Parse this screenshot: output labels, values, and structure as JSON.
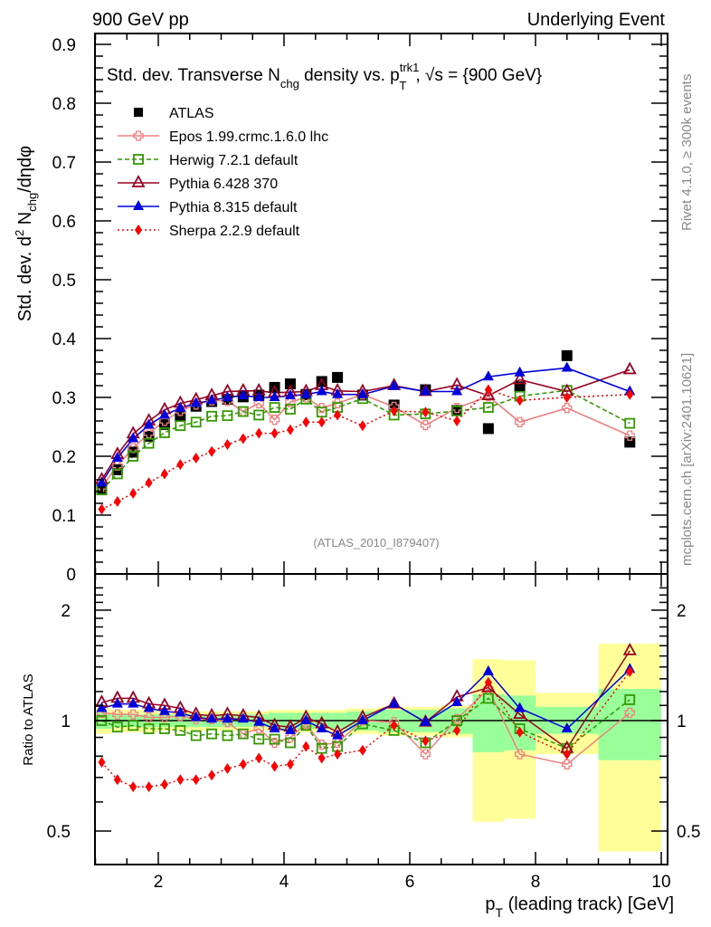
{
  "header": {
    "left": "900 GeV pp",
    "right": "Underlying Event"
  },
  "side_labels": {
    "rivet": "Rivet 4.1.0, ≥ 300k events",
    "mcplots": "mcplots.cern.ch [arXiv:2401.10621]"
  },
  "analysis_id": "(ATLAS_2010_I879407)",
  "chart_data": [
    {
      "type": "line",
      "title": "Std. dev. Transverse N_chg density vs. p_T^trk1, √s = {900 GeV}",
      "title_parts": {
        "a": "Std. dev. Transverse N",
        "sub1": "chg",
        "b": " density vs. p",
        "sup": "trk1",
        "sub2": "T",
        "c": ", √s = {900 GeV}"
      },
      "xlabel": "p_T (leading track) [GeV]",
      "xlabel_parts": {
        "p": "p",
        "sub": "T",
        "rest": " (leading track) [GeV]"
      },
      "ylabel": "Std. dev. d² N_chg/dηdφ",
      "ylabel_parts": {
        "a": "Std. dev. d",
        "sup": "2",
        "b": " N",
        "sub": "chg",
        "c": "/dηdφ"
      },
      "xlim": [
        0.75,
        10.1
      ],
      "ylim": [
        0,
        0.92
      ],
      "xticks": [
        "2",
        "4",
        "6",
        "8",
        "10"
      ],
      "xtick_values": [
        2,
        4,
        6,
        8,
        10
      ],
      "yticks": [
        "0",
        "0.1",
        "0.2",
        "0.3",
        "0.4",
        "0.5",
        "0.6",
        "0.7",
        "0.8",
        "0.9"
      ],
      "ytick_values": [
        0,
        0.1,
        0.2,
        0.3,
        0.4,
        0.5,
        0.6,
        0.7,
        0.8,
        0.9
      ],
      "legend_position": "top-left",
      "x": [
        1.1,
        1.35,
        1.6,
        1.85,
        2.1,
        2.35,
        2.6,
        2.85,
        3.1,
        3.35,
        3.6,
        3.85,
        4.1,
        4.35,
        4.6,
        4.85,
        5.25,
        5.75,
        6.25,
        6.75,
        7.25,
        7.75,
        8.5,
        9.5
      ],
      "series": [
        {
          "name": "ATLAS",
          "color": "#000000",
          "marker": "square",
          "line": "none",
          "values": [
            0.143,
            0.177,
            0.207,
            0.234,
            0.254,
            0.268,
            0.285,
            0.293,
            0.297,
            0.301,
            0.304,
            0.317,
            0.323,
            0.305,
            0.327,
            0.334,
            0.304,
            0.287,
            0.313,
            0.278,
            0.247,
            0.318,
            0.371,
            0.224
          ]
        },
        {
          "name": "Epos 1.99.crmc.1.6.0 lhc",
          "color": "#f08080",
          "marker": "open-cross",
          "line": "solid",
          "values": [
            0.148,
            0.184,
            0.214,
            0.239,
            0.26,
            0.277,
            0.288,
            0.295,
            0.294,
            0.276,
            0.29,
            0.262,
            0.292,
            0.3,
            0.282,
            0.29,
            0.305,
            0.284,
            0.253,
            0.282,
            0.302,
            0.258,
            0.282,
            0.235
          ]
        },
        {
          "name": "Herwig 7.2.1 default",
          "color": "#339900",
          "marker": "open-square",
          "line": "dashed",
          "values": [
            0.143,
            0.17,
            0.2,
            0.222,
            0.24,
            0.252,
            0.258,
            0.268,
            0.269,
            0.276,
            0.27,
            0.283,
            0.28,
            0.297,
            0.275,
            0.283,
            0.298,
            0.27,
            0.272,
            0.277,
            0.283,
            0.302,
            0.312,
            0.256
          ]
        },
        {
          "name": "Pythia 6.428 370",
          "color": "#990022",
          "marker": "open-triangle",
          "line": "solid",
          "values": [
            0.16,
            0.203,
            0.238,
            0.26,
            0.279,
            0.29,
            0.296,
            0.303,
            0.31,
            0.311,
            0.311,
            0.308,
            0.309,
            0.31,
            0.32,
            0.311,
            0.31,
            0.32,
            0.31,
            0.321,
            0.303,
            0.33,
            0.31,
            0.347
          ]
        },
        {
          "name": "Pythia 8.315 default",
          "color": "#0000dd",
          "marker": "triangle",
          "line": "solid",
          "values": [
            0.155,
            0.197,
            0.23,
            0.253,
            0.27,
            0.282,
            0.29,
            0.295,
            0.3,
            0.303,
            0.3,
            0.3,
            0.303,
            0.305,
            0.31,
            0.305,
            0.305,
            0.319,
            0.31,
            0.31,
            0.335,
            0.342,
            0.35,
            0.31
          ]
        },
        {
          "name": "Sherpa 2.2.9 default",
          "color": "#ff0000",
          "marker": "diamond",
          "line": "dotted",
          "values": [
            0.11,
            0.123,
            0.137,
            0.155,
            0.17,
            0.186,
            0.197,
            0.208,
            0.22,
            0.23,
            0.239,
            0.239,
            0.245,
            0.258,
            0.258,
            0.27,
            0.252,
            0.277,
            0.275,
            0.26,
            0.313,
            0.295,
            0.3,
            0.305
          ]
        }
      ]
    },
    {
      "type": "line",
      "title": "",
      "xlabel": "p_T (leading track) [GeV]",
      "ylabel": "Ratio to ATLAS",
      "yscale": "log",
      "ylim": [
        0.42,
        2.35
      ],
      "yticks": [
        "0.5",
        "1",
        "2"
      ],
      "ytick_values": [
        0.5,
        1,
        2
      ],
      "x_edges": [
        1.0,
        1.25,
        1.5,
        1.75,
        2.0,
        2.25,
        2.5,
        2.75,
        3.0,
        3.25,
        3.5,
        3.75,
        4.0,
        4.25,
        4.5,
        4.75,
        5.0,
        5.5,
        6.0,
        6.5,
        7.0,
        7.5,
        8.0,
        9.0,
        10.0
      ],
      "band_stat": {
        "name": "stat uncertainty",
        "color": "#99ff99",
        "low": [
          0.95,
          0.96,
          0.96,
          0.96,
          0.96,
          0.96,
          0.96,
          0.96,
          0.96,
          0.96,
          0.96,
          0.95,
          0.95,
          0.95,
          0.95,
          0.95,
          0.94,
          0.93,
          0.93,
          0.92,
          0.82,
          0.83,
          0.92,
          0.78
        ],
        "high": [
          1.05,
          1.04,
          1.04,
          1.04,
          1.04,
          1.04,
          1.04,
          1.04,
          1.04,
          1.04,
          1.04,
          1.05,
          1.05,
          1.05,
          1.05,
          1.05,
          1.06,
          1.07,
          1.07,
          1.08,
          1.18,
          1.17,
          1.09,
          1.22
        ]
      },
      "band_total": {
        "name": "total uncertainty",
        "color": "#ffff99",
        "low": [
          0.92,
          0.93,
          0.93,
          0.93,
          0.94,
          0.94,
          0.94,
          0.94,
          0.94,
          0.94,
          0.94,
          0.93,
          0.93,
          0.93,
          0.93,
          0.93,
          0.92,
          0.91,
          0.91,
          0.9,
          0.53,
          0.54,
          0.81,
          0.44
        ],
        "high": [
          1.08,
          1.07,
          1.07,
          1.07,
          1.06,
          1.06,
          1.06,
          1.06,
          1.06,
          1.06,
          1.06,
          1.07,
          1.07,
          1.07,
          1.07,
          1.07,
          1.08,
          1.09,
          1.09,
          1.1,
          1.47,
          1.46,
          1.19,
          1.62
        ]
      },
      "series": [
        {
          "name": "Epos 1.99.crmc.1.6.0 lhc",
          "color": "#f08080",
          "values": [
            1.05,
            1.04,
            1.04,
            1.02,
            1.02,
            1.03,
            1.01,
            1.01,
            0.99,
            0.92,
            0.95,
            0.87,
            0.9,
            0.98,
            0.86,
            0.87,
            1.0,
            0.99,
            0.81,
            1.01,
            1.22,
            0.81,
            0.76,
            1.05
          ]
        },
        {
          "name": "Herwig 7.2.1 default",
          "color": "#339900",
          "values": [
            1.0,
            0.96,
            0.97,
            0.95,
            0.95,
            0.94,
            0.91,
            0.92,
            0.91,
            0.92,
            0.89,
            0.89,
            0.87,
            0.97,
            0.84,
            0.85,
            0.98,
            0.94,
            0.87,
            1.0,
            1.15,
            0.95,
            0.84,
            1.14
          ]
        },
        {
          "name": "Pythia 6.428 370",
          "color": "#990022",
          "values": [
            1.12,
            1.15,
            1.15,
            1.11,
            1.1,
            1.08,
            1.04,
            1.03,
            1.04,
            1.03,
            1.02,
            0.97,
            0.96,
            1.02,
            0.98,
            0.93,
            1.02,
            1.11,
            0.99,
            1.16,
            1.23,
            1.04,
            0.84,
            1.55
          ]
        },
        {
          "name": "Pythia 8.315 default",
          "color": "#0000dd",
          "values": [
            1.08,
            1.11,
            1.11,
            1.08,
            1.06,
            1.05,
            1.02,
            1.01,
            1.01,
            1.01,
            0.99,
            0.95,
            0.94,
            1.0,
            0.95,
            0.91,
            1.0,
            1.11,
            0.99,
            1.12,
            1.36,
            1.08,
            0.95,
            1.38
          ]
        },
        {
          "name": "Sherpa 2.2.9 default",
          "color": "#ff0000",
          "values": [
            0.77,
            0.69,
            0.66,
            0.66,
            0.67,
            0.69,
            0.69,
            0.71,
            0.74,
            0.76,
            0.79,
            0.75,
            0.76,
            0.85,
            0.79,
            0.81,
            0.83,
            0.97,
            0.88,
            0.94,
            1.27,
            0.93,
            0.81,
            1.36
          ]
        }
      ]
    }
  ]
}
